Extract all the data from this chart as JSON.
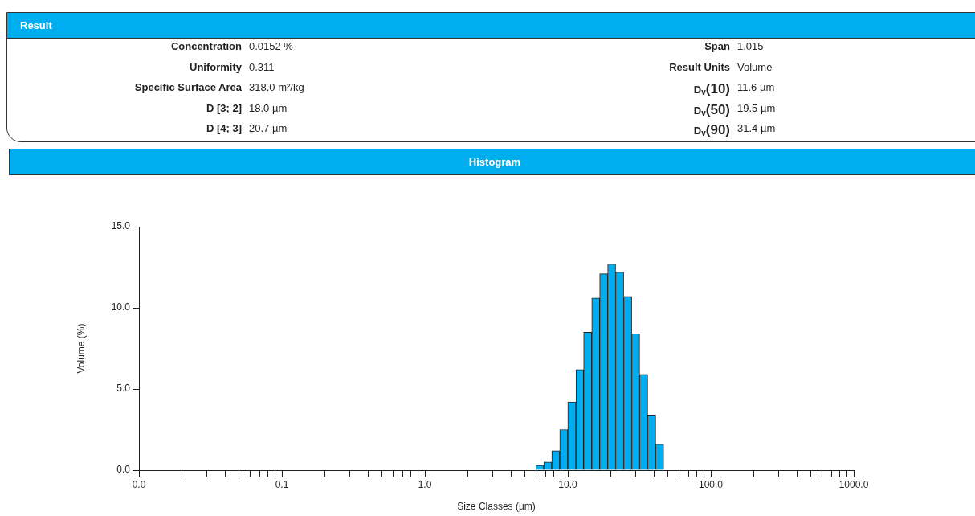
{
  "chart_data": [
    {
      "type": "other",
      "title": "Result",
      "annotations": [
        "Concentration",
        "0.0152 %",
        "Uniformity",
        "0.311",
        "Specific Surface Area",
        "318.0 m²/kg",
        "D [3; 2]",
        "18.0 µm",
        "D [4; 3]",
        "20.7 µm",
        "Span",
        "1.015",
        "Result Units",
        "Volume",
        "D$_{v}$(10)",
        "11.6 µm",
        "D$_{v}$(50)",
        "19.5 µm",
        "D$_{v}$(90)",
        "31.4 µm"
      ]
    },
    {
      "type": "histogram",
      "title": "Histogram",
      "xlabel": "Size Classes (µm)",
      "ylabel": "Volume (%)",
      "color": "#00aeef",
      "log": "x",
      "bins": [
        5.97,
        6.79,
        7.72,
        8.78,
        9.99,
        11.4,
        12.9,
        14.7,
        16.7,
        19.0,
        21.6,
        24.6,
        28.0,
        31.8,
        36.2,
        41.2,
        46.8
      ],
      "values": [
        0.3,
        0.5,
        1.2,
        2.5,
        4.2,
        6.2,
        8.5,
        10.6,
        12.1,
        12.7,
        12.2,
        10.7,
        8.4,
        5.9,
        3.4,
        1.6
      ],
      "xlim": [
        0.01,
        1000
      ],
      "ylim": [
        0,
        15
      ],
      "xticks": [
        {
          "value": 0.01,
          "label": "0.0"
        },
        {
          "value": 0.02,
          "label": null
        },
        {
          "value": 0.03,
          "label": null
        },
        {
          "value": 0.04,
          "label": null
        },
        {
          "value": 0.05,
          "label": null
        },
        {
          "value": 0.06,
          "label": null
        },
        {
          "value": 0.07,
          "label": null
        },
        {
          "value": 0.08,
          "label": null
        },
        {
          "value": 0.09,
          "label": null
        },
        {
          "value": 0.1,
          "label": "0.1"
        },
        {
          "value": 0.2,
          "label": null
        },
        {
          "value": 0.3,
          "label": null
        },
        {
          "value": 0.4,
          "label": null
        },
        {
          "value": 0.5,
          "label": null
        },
        {
          "value": 0.6,
          "label": null
        },
        {
          "value": 0.7,
          "label": null
        },
        {
          "value": 0.8,
          "label": null
        },
        {
          "value": 0.9,
          "label": null
        },
        {
          "value": 1,
          "label": "1.0"
        },
        {
          "value": 2,
          "label": null
        },
        {
          "value": 3,
          "label": null
        },
        {
          "value": 4,
          "label": null
        },
        {
          "value": 5,
          "label": null
        },
        {
          "value": 6,
          "label": null
        },
        {
          "value": 7,
          "label": null
        },
        {
          "value": 8,
          "label": null
        },
        {
          "value": 9,
          "label": null
        },
        {
          "value": 10,
          "label": "10.0"
        },
        {
          "value": 20,
          "label": null
        },
        {
          "value": 30,
          "label": null
        },
        {
          "value": 40,
          "label": null
        },
        {
          "value": 50,
          "label": null
        },
        {
          "value": 60,
          "label": null
        },
        {
          "value": 70,
          "label": null
        },
        {
          "value": 80,
          "label": null
        },
        {
          "value": 90,
          "label": null
        },
        {
          "value": 100,
          "label": "100.0"
        },
        {
          "value": 200,
          "label": null
        },
        {
          "value": 300,
          "label": null
        },
        {
          "value": 400,
          "label": null
        },
        {
          "value": 500,
          "label": null
        },
        {
          "value": 600,
          "label": null
        },
        {
          "value": 700,
          "label": null
        },
        {
          "value": 800,
          "label": null
        },
        {
          "value": 900,
          "label": null
        },
        {
          "value": 1000,
          "label": "1000.0"
        }
      ],
      "yticks": [
        {
          "value": 0,
          "label": "0.0"
        },
        {
          "value": 5,
          "label": "5.0"
        },
        {
          "value": 10,
          "label": "10.0"
        },
        {
          "value": 15,
          "label": "15.0"
        }
      ],
      "grid": false,
      "legend": false
    }
  ]
}
